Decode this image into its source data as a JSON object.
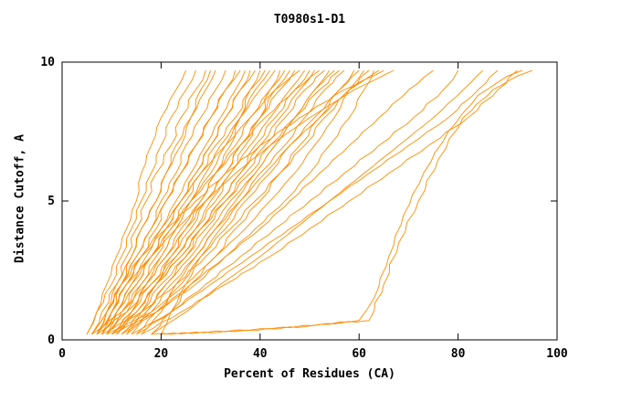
{
  "chart_data": {
    "type": "line",
    "title": "T0980s1-D1",
    "xlabel": "Percent of Residues (CA)",
    "ylabel": "Distance Cutoff, A",
    "xlim": [
      0,
      100
    ],
    "ylim": [
      0,
      10
    ],
    "xticks": [
      0,
      20,
      40,
      60,
      80,
      100
    ],
    "yticks": [
      0,
      5,
      10
    ],
    "grid": false,
    "legend": "none",
    "line_color": "#ff8c00",
    "axis_color": "#000000",
    "y_levels": [
      0.2,
      1,
      2,
      3,
      4,
      5,
      6,
      7,
      8,
      9,
      9.7
    ],
    "series": [
      {
        "x": [
          5,
          7,
          9,
          11,
          13,
          15,
          16,
          18,
          20,
          23,
          25
        ]
      },
      {
        "x": [
          5,
          7,
          10,
          12,
          14,
          16,
          18,
          20,
          22,
          25,
          27
        ]
      },
      {
        "x": [
          6,
          8,
          11,
          13,
          15,
          17,
          19,
          22,
          24,
          27,
          29
        ]
      },
      {
        "x": [
          6,
          9,
          11,
          14,
          16,
          19,
          21,
          24,
          26,
          29,
          31
        ]
      },
      {
        "x": [
          7,
          10,
          12,
          15,
          18,
          20,
          23,
          25,
          28,
          31,
          33
        ]
      },
      {
        "x": [
          7,
          10,
          13,
          16,
          19,
          21,
          24,
          27,
          30,
          33,
          35
        ]
      },
      {
        "x": [
          8,
          11,
          14,
          17,
          20,
          23,
          26,
          29,
          32,
          35,
          37
        ]
      },
      {
        "x": [
          8,
          11,
          15,
          18,
          21,
          24,
          27,
          30,
          33,
          36,
          39
        ]
      },
      {
        "x": [
          9,
          12,
          16,
          19,
          22,
          25,
          28,
          31,
          35,
          38,
          41
        ]
      },
      {
        "x": [
          9,
          13,
          16,
          20,
          23,
          26,
          30,
          33,
          36,
          40,
          43
        ]
      },
      {
        "x": [
          10,
          14,
          17,
          21,
          24,
          28,
          31,
          35,
          38,
          42,
          45
        ]
      },
      {
        "x": [
          10,
          14,
          18,
          22,
          25,
          29,
          33,
          36,
          40,
          44,
          47
        ]
      },
      {
        "x": [
          11,
          15,
          19,
          23,
          27,
          30,
          34,
          38,
          42,
          46,
          49
        ]
      },
      {
        "x": [
          11,
          15,
          19,
          24,
          28,
          32,
          36,
          40,
          44,
          48,
          51
        ]
      },
      {
        "x": [
          12,
          16,
          20,
          25,
          29,
          33,
          37,
          41,
          45,
          49,
          53
        ]
      },
      {
        "x": [
          12,
          17,
          21,
          26,
          30,
          34,
          39,
          43,
          47,
          51,
          55
        ]
      },
      {
        "x": [
          13,
          18,
          22,
          27,
          31,
          36,
          40,
          45,
          49,
          53,
          57
        ]
      },
      {
        "x": [
          8,
          16,
          23,
          29,
          34,
          39,
          44,
          48,
          52,
          56,
          59
        ]
      },
      {
        "x": [
          9,
          18,
          25,
          31,
          37,
          42,
          47,
          51,
          55,
          58,
          61
        ]
      },
      {
        "x": [
          10,
          19,
          27,
          33,
          39,
          45,
          50,
          54,
          58,
          61,
          63
        ]
      },
      {
        "x": [
          7,
          9,
          12,
          16,
          21,
          27,
          33,
          40,
          48,
          57,
          65
        ]
      },
      {
        "x": [
          8,
          10,
          13,
          18,
          23,
          29,
          35,
          42,
          50,
          59,
          67
        ]
      },
      {
        "x": [
          6,
          12,
          17,
          21,
          25,
          28,
          31,
          34,
          36,
          38,
          40
        ]
      },
      {
        "x": [
          7,
          13,
          18,
          23,
          27,
          31,
          34,
          37,
          40,
          42,
          44
        ]
      },
      {
        "x": [
          8,
          10,
          13,
          16,
          20,
          24,
          28,
          33,
          38,
          43,
          48
        ]
      },
      {
        "x": [
          9,
          11,
          14,
          18,
          22,
          26,
          31,
          36,
          41,
          47,
          52
        ]
      },
      {
        "x": [
          10,
          15,
          19,
          24,
          28,
          33,
          38,
          42,
          47,
          52,
          56
        ]
      },
      {
        "x": [
          6,
          9,
          12,
          15,
          18,
          21,
          24,
          27,
          30,
          33,
          36
        ]
      },
      {
        "x": [
          15,
          19,
          24,
          28,
          33,
          37,
          42,
          46,
          51,
          56,
          60
        ]
      },
      {
        "x": [
          18,
          22,
          26,
          31,
          35,
          40,
          44,
          49,
          53,
          58,
          62
        ]
      },
      {
        "x": [
          20,
          22,
          25,
          28,
          32,
          36,
          41,
          46,
          52,
          58,
          64
        ]
      },
      {
        "x": [
          7,
          9,
          12,
          14,
          16,
          19,
          21,
          23,
          26,
          28,
          30
        ]
      },
      {
        "x": [
          9,
          12,
          15,
          18,
          21,
          24,
          27,
          30,
          33,
          36,
          38
        ]
      },
      {
        "x": [
          11,
          14,
          17,
          20,
          23,
          26,
          29,
          32,
          36,
          39,
          42
        ]
      },
      {
        "x": [
          13,
          16,
          19,
          22,
          26,
          29,
          33,
          36,
          40,
          43,
          46
        ]
      },
      {
        "x": [
          14,
          17,
          21,
          25,
          28,
          32,
          36,
          39,
          43,
          47,
          50
        ]
      },
      {
        "x": [
          16,
          20,
          23,
          27,
          31,
          35,
          39,
          43,
          47,
          51,
          54
        ]
      },
      {
        "x": [
          12,
          19,
          26,
          33,
          40,
          46,
          52,
          58,
          64,
          70,
          75
        ]
      },
      {
        "x": [
          15,
          22,
          29,
          36,
          43,
          50,
          57,
          64,
          71,
          77,
          80
        ]
      },
      {
        "x": [
          18,
          25,
          32,
          40,
          47,
          54,
          61,
          68,
          75,
          81,
          85
        ]
      },
      {
        "x": [
          14,
          22,
          30,
          38,
          46,
          54,
          62,
          70,
          78,
          84,
          88
        ]
      },
      {
        "x": [
          16,
          24,
          33,
          42,
          50,
          58,
          66,
          74,
          82,
          88,
          92
        ]
      },
      {
        "points": [
          [
            18,
            0.2
          ],
          [
            35,
            0.3
          ],
          [
            50,
            0.5
          ],
          [
            60,
            0.7
          ],
          [
            63,
            1.5
          ],
          [
            66,
            3
          ],
          [
            69,
            4.5
          ],
          [
            73,
            6
          ],
          [
            78,
            7.5
          ],
          [
            84,
            8.8
          ],
          [
            90,
            9.5
          ],
          [
            93,
            9.7
          ]
        ]
      },
      {
        "points": [
          [
            20,
            0.2
          ],
          [
            42,
            0.4
          ],
          [
            62,
            0.7
          ],
          [
            65,
            2
          ],
          [
            68,
            3.5
          ],
          [
            72,
            5
          ],
          [
            76,
            6.5
          ],
          [
            81,
            8
          ],
          [
            87,
            9
          ],
          [
            92,
            9.5
          ],
          [
            95,
            9.7
          ]
        ]
      }
    ]
  }
}
